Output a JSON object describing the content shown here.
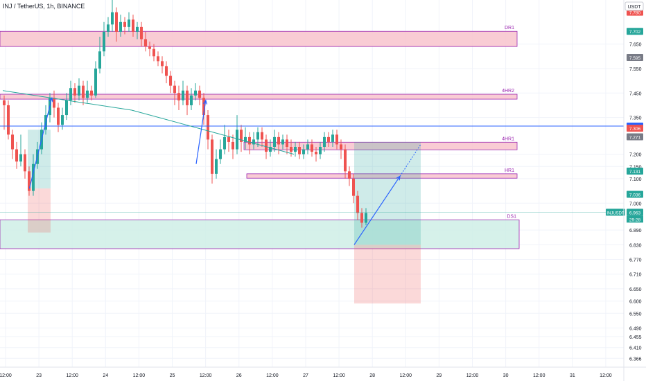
{
  "header": {
    "symbol_title": "INJ / TetherUS, 1h, BINANCE"
  },
  "currency_label": "USDT",
  "colors": {
    "up": "#26a69a",
    "down": "#ef5350",
    "zone_fill": "#f8c3cc",
    "zone_border": "#9c27b0",
    "support_fill": "#cfeee6",
    "trend": "#2962ff",
    "grid": "#f0f3fa",
    "axis_text": "#131722"
  },
  "chart_data": {
    "type": "candlestick",
    "title": "INJ / TetherUS, 1h, BINANCE",
    "ylim": [
      6.33,
      7.83
    ],
    "y_ticks": [
      "7.780",
      "7.702",
      "7.650",
      "7.595",
      "7.550",
      "7.450",
      "7.350",
      "7.315",
      "7.306",
      "7.271",
      "7.200",
      "7.150",
      "7.131",
      "7.100",
      "7.036",
      "7.000",
      "6.963",
      "6.890",
      "6.830",
      "6.770",
      "6.710",
      "6.650",
      "6.600",
      "6.550",
      "6.490",
      "6.455",
      "6.410",
      "6.366"
    ],
    "x_ticks": [
      "12:00",
      "23",
      "12:00",
      "24",
      "12:00",
      "25",
      "12:00",
      "26",
      "12:00",
      "27",
      "12:00",
      "28",
      "12:00",
      "29",
      "12:00",
      "30",
      "12:00",
      "31",
      "12:00"
    ],
    "price_labels": [
      {
        "text": "7.780",
        "value": 7.78,
        "color": "#ef5350"
      },
      {
        "text": "7.702",
        "value": 7.702,
        "color": "#26a69a"
      },
      {
        "text": "7.595",
        "value": 7.595,
        "color": "#787b86"
      },
      {
        "text": "7.315",
        "value": 7.315,
        "color": "#2962ff"
      },
      {
        "text": "7.306",
        "value": 7.306,
        "color": "#ef5350"
      },
      {
        "text": "7.271",
        "value": 7.271,
        "color": "#787b86"
      },
      {
        "text": "7.131",
        "value": 7.131,
        "color": "#26a69a"
      },
      {
        "text": "7.036",
        "value": 7.036,
        "color": "#26a69a"
      },
      {
        "text": "6.963",
        "value": 6.963,
        "color": "#26a69a"
      }
    ],
    "last_price": {
      "ticker": "INJUSDT",
      "price": "6.963",
      "countdown": "29:28"
    },
    "zones": [
      {
        "label": "DR1",
        "top": 7.702,
        "bottom": 7.64
      },
      {
        "label": "4HR2",
        "top": 7.445,
        "bottom": 7.425
      },
      {
        "label": "4HR1",
        "top": 7.249,
        "bottom": 7.218
      },
      {
        "label": "HR1",
        "top": 7.12,
        "bottom": 7.102
      },
      {
        "label": "DS1",
        "top": 6.932,
        "bottom": 6.814
      }
    ],
    "horizontal_line": {
      "value": 7.315
    },
    "candles": [
      [
        7.42,
        7.4,
        7.44,
        7.3
      ],
      [
        7.4,
        7.28,
        7.42,
        7.26
      ],
      [
        7.28,
        7.22,
        7.3,
        7.18
      ],
      [
        7.22,
        7.17,
        7.25,
        7.14
      ],
      [
        7.17,
        7.2,
        7.28,
        7.15
      ],
      [
        7.2,
        7.13,
        7.22,
        7.1
      ],
      [
        7.13,
        7.05,
        7.15,
        7.03
      ],
      [
        7.05,
        7.16,
        7.2,
        7.03
      ],
      [
        7.16,
        7.22,
        7.25,
        7.14
      ],
      [
        7.22,
        7.3,
        7.33,
        7.2
      ],
      [
        7.3,
        7.36,
        7.4,
        7.28
      ],
      [
        7.36,
        7.43,
        7.45,
        7.33
      ],
      [
        7.43,
        7.39,
        7.46,
        7.35
      ],
      [
        7.39,
        7.32,
        7.41,
        7.29
      ],
      [
        7.32,
        7.36,
        7.39,
        7.3
      ],
      [
        7.36,
        7.42,
        7.45,
        7.34
      ],
      [
        7.42,
        7.47,
        7.5,
        7.4
      ],
      [
        7.47,
        7.44,
        7.49,
        7.41
      ],
      [
        7.44,
        7.48,
        7.51,
        7.42
      ],
      [
        7.48,
        7.43,
        7.5,
        7.4
      ],
      [
        7.43,
        7.46,
        7.5,
        7.41
      ],
      [
        7.46,
        7.44,
        7.48,
        7.42
      ],
      [
        7.44,
        7.55,
        7.58,
        7.43
      ],
      [
        7.55,
        7.62,
        7.68,
        7.53
      ],
      [
        7.62,
        7.7,
        7.74,
        7.6
      ],
      [
        7.7,
        7.73,
        7.76,
        7.68
      ],
      [
        7.73,
        7.78,
        7.84,
        7.7
      ],
      [
        7.78,
        7.7,
        7.8,
        7.66
      ],
      [
        7.7,
        7.74,
        7.77,
        7.68
      ],
      [
        7.74,
        7.72,
        7.76,
        7.69
      ],
      [
        7.72,
        7.75,
        7.78,
        7.7
      ],
      [
        7.75,
        7.7,
        7.77,
        7.68
      ],
      [
        7.7,
        7.72,
        7.74,
        7.67
      ],
      [
        7.72,
        7.67,
        7.74,
        7.64
      ],
      [
        7.67,
        7.64,
        7.7,
        7.62
      ],
      [
        7.64,
        7.63,
        7.66,
        7.6
      ],
      [
        7.63,
        7.6,
        7.65,
        7.58
      ],
      [
        7.6,
        7.58,
        7.62,
        7.56
      ],
      [
        7.58,
        7.56,
        7.6,
        7.53
      ],
      [
        7.56,
        7.52,
        7.58,
        7.49
      ],
      [
        7.52,
        7.48,
        7.54,
        7.45
      ],
      [
        7.48,
        7.45,
        7.5,
        7.4
      ],
      [
        7.45,
        7.42,
        7.48,
        7.38
      ],
      [
        7.42,
        7.46,
        7.5,
        7.4
      ],
      [
        7.46,
        7.4,
        7.48,
        7.36
      ],
      [
        7.4,
        7.44,
        7.47,
        7.38
      ],
      [
        7.44,
        7.46,
        7.49,
        7.42
      ],
      [
        7.46,
        7.43,
        7.48,
        7.4
      ],
      [
        7.43,
        7.36,
        7.45,
        7.32
      ],
      [
        7.36,
        7.26,
        7.38,
        7.22
      ],
      [
        7.26,
        7.12,
        7.28,
        7.08
      ],
      [
        7.12,
        7.18,
        7.22,
        7.1
      ],
      [
        7.18,
        7.22,
        7.26,
        7.16
      ],
      [
        7.22,
        7.27,
        7.32,
        7.2
      ],
      [
        7.27,
        7.25,
        7.3,
        7.21
      ],
      [
        7.25,
        7.22,
        7.28,
        7.18
      ],
      [
        7.22,
        7.3,
        7.36,
        7.2
      ],
      [
        7.3,
        7.25,
        7.32,
        7.21
      ],
      [
        7.25,
        7.27,
        7.31,
        7.22
      ],
      [
        7.27,
        7.24,
        7.29,
        7.2
      ],
      [
        7.24,
        7.26,
        7.29,
        7.22
      ],
      [
        7.26,
        7.29,
        7.31,
        7.23
      ],
      [
        7.29,
        7.26,
        7.31,
        7.23
      ],
      [
        7.26,
        7.21,
        7.28,
        7.18
      ],
      [
        7.21,
        7.23,
        7.26,
        7.19
      ],
      [
        7.23,
        7.27,
        7.3,
        7.21
      ],
      [
        7.27,
        7.24,
        7.29,
        7.2
      ],
      [
        7.24,
        7.26,
        7.28,
        7.22
      ],
      [
        7.26,
        7.23,
        7.28,
        7.2
      ],
      [
        7.23,
        7.21,
        7.26,
        7.19
      ],
      [
        7.21,
        7.23,
        7.25,
        7.19
      ],
      [
        7.23,
        7.2,
        7.25,
        7.18
      ],
      [
        7.2,
        7.22,
        7.24,
        7.18
      ],
      [
        7.22,
        7.24,
        7.26,
        7.2
      ],
      [
        7.24,
        7.21,
        7.26,
        7.19
      ],
      [
        7.21,
        7.2,
        7.23,
        7.17
      ],
      [
        7.2,
        7.23,
        7.25,
        7.18
      ],
      [
        7.23,
        7.27,
        7.29,
        7.21
      ],
      [
        7.27,
        7.25,
        7.29,
        7.23
      ],
      [
        7.25,
        7.28,
        7.3,
        7.23
      ],
      [
        7.28,
        7.24,
        7.3,
        7.22
      ],
      [
        7.24,
        7.22,
        7.26,
        7.18
      ],
      [
        7.22,
        7.13,
        7.24,
        7.1
      ],
      [
        7.13,
        7.1,
        7.15,
        7.07
      ],
      [
        7.1,
        7.03,
        7.12,
        7.0
      ],
      [
        7.03,
        6.96,
        7.05,
        6.93
      ],
      [
        6.96,
        6.92,
        6.98,
        6.9
      ],
      [
        6.92,
        6.96,
        6.98,
        6.91
      ]
    ],
    "trend_lines": [
      {
        "from": [
          0,
          7.46
        ],
        "to": [
          31,
          7.38
        ]
      },
      {
        "from": [
          31,
          7.38
        ],
        "to": [
          70,
          7.2
        ]
      }
    ],
    "arrows": [
      {
        "from": [
          6.4,
          7.06
        ],
        "to": [
          11.8,
          7.43
        ]
      },
      {
        "from": [
          46.5,
          7.16
        ],
        "to": [
          48.8,
          7.42
        ]
      },
      {
        "from": [
          84.5,
          6.83
        ],
        "to": [
          95.5,
          7.11
        ]
      }
    ],
    "dotted_projection": {
      "from": [
        95.5,
        7.11
      ],
      "to": [
        100.5,
        7.24
      ]
    },
    "position_boxes": [
      {
        "from_idx": 84.5,
        "to_idx": 100.5,
        "entry": 6.83,
        "target": 7.25,
        "stop": 6.59
      },
      {
        "from_idx": 6,
        "to_idx": 11.5,
        "entry": 7.06,
        "target": 7.3,
        "stop": 6.88
      }
    ]
  }
}
